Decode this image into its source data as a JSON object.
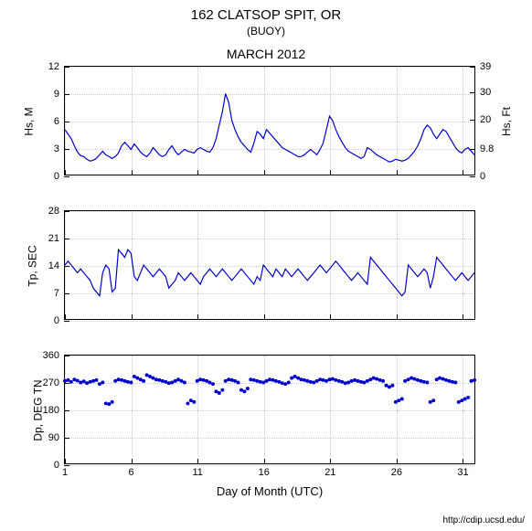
{
  "title": "162 CLATSOP SPIT, OR",
  "subtitle": "(BUOY)",
  "month": "MARCH 2012",
  "footer": "http://cdip.ucsd.edu/",
  "xaxis": {
    "title": "Day of Month (UTC)",
    "min": 1,
    "max": 32,
    "ticks": [
      1,
      6,
      11,
      16,
      21,
      26,
      31
    ]
  },
  "colors": {
    "line": "#0000cc",
    "grid": "#cccccc",
    "bg": "#ffffff",
    "text": "#000000"
  },
  "charts": [
    {
      "id": "chart1",
      "ylabel": "Hs, M",
      "ylabel_right": "Hs, Ft",
      "ymin": 0,
      "ymax": 12,
      "yticks": [
        0,
        3,
        6,
        9,
        12
      ],
      "yticks_right": [
        0,
        9.8,
        20,
        30,
        39
      ],
      "type": "line",
      "line_width": 1.2,
      "data": [
        5.0,
        4.5,
        4.0,
        3.2,
        2.5,
        2.1,
        2.0,
        1.7,
        1.5,
        1.6,
        1.8,
        2.2,
        2.6,
        2.2,
        2.0,
        1.8,
        2.0,
        2.4,
        3.2,
        3.6,
        3.2,
        2.8,
        3.4,
        3.0,
        2.5,
        2.2,
        2.0,
        2.4,
        3.0,
        2.6,
        2.2,
        2.0,
        2.2,
        2.8,
        3.2,
        2.6,
        2.2,
        2.5,
        2.8,
        2.6,
        2.5,
        2.4,
        2.8,
        3.0,
        2.8,
        2.6,
        2.5,
        3.0,
        4.0,
        5.5,
        7.0,
        9.0,
        8.0,
        6.0,
        5.0,
        4.2,
        3.6,
        3.2,
        2.8,
        2.5,
        3.5,
        4.8,
        4.5,
        4.0,
        5.0,
        4.6,
        4.2,
        3.8,
        3.4,
        3.0,
        2.8,
        2.6,
        2.4,
        2.2,
        2.0,
        2.0,
        2.2,
        2.5,
        2.8,
        2.5,
        2.2,
        2.8,
        3.5,
        5.0,
        6.5,
        6.0,
        5.0,
        4.2,
        3.6,
        3.0,
        2.6,
        2.4,
        2.2,
        2.0,
        1.8,
        2.0,
        3.0,
        2.8,
        2.5,
        2.2,
        2.0,
        1.8,
        1.6,
        1.4,
        1.5,
        1.7,
        1.6,
        1.5,
        1.6,
        1.8,
        2.2,
        2.6,
        3.2,
        4.0,
        5.0,
        5.5,
        5.2,
        4.5,
        4.0,
        4.5,
        5.0,
        4.8,
        4.2,
        3.6,
        3.0,
        2.6,
        2.4,
        2.8,
        3.0,
        2.6,
        2.2
      ]
    },
    {
      "id": "chart2",
      "ylabel": "Tp, SEC",
      "ymin": 0,
      "ymax": 28,
      "yticks": [
        0,
        7,
        14,
        21,
        28
      ],
      "type": "line",
      "line_width": 1.2,
      "data": [
        14,
        15,
        14,
        13,
        12,
        13,
        12,
        11,
        10,
        8,
        7,
        6,
        12,
        14,
        13,
        7,
        8,
        18,
        17,
        16,
        18,
        17,
        11,
        10,
        12,
        14,
        13,
        12,
        11,
        12,
        13,
        12,
        11,
        8,
        9,
        10,
        12,
        11,
        10,
        11,
        12,
        11,
        10,
        9,
        11,
        12,
        13,
        12,
        11,
        12,
        13,
        12,
        11,
        10,
        11,
        12,
        13,
        12,
        11,
        10,
        9,
        11,
        10,
        14,
        13,
        12,
        11,
        13,
        12,
        11,
        13,
        12,
        11,
        12,
        13,
        12,
        11,
        10,
        11,
        12,
        13,
        14,
        13,
        12,
        13,
        14,
        15,
        14,
        13,
        12,
        11,
        10,
        11,
        12,
        11,
        10,
        9,
        16,
        15,
        14,
        13,
        12,
        11,
        10,
        9,
        8,
        7,
        6,
        7,
        14,
        13,
        12,
        11,
        12,
        13,
        12,
        8,
        11,
        16,
        15,
        14,
        13,
        12,
        11,
        10,
        11,
        12,
        11,
        10,
        11,
        12
      ]
    },
    {
      "id": "chart3",
      "ylabel": "Dp, DEG TN",
      "ymin": 0,
      "ymax": 360,
      "yticks": [
        0,
        90,
        180,
        270,
        360
      ],
      "type": "scatter",
      "marker_size": 2,
      "data": [
        275,
        278,
        272,
        280,
        276,
        270,
        274,
        268,
        272,
        275,
        278,
        265,
        270,
        200,
        198,
        205,
        275,
        280,
        278,
        275,
        272,
        270,
        290,
        285,
        280,
        275,
        295,
        290,
        285,
        280,
        278,
        275,
        272,
        268,
        270,
        275,
        280,
        275,
        270,
        200,
        210,
        205,
        275,
        280,
        278,
        275,
        270,
        265,
        240,
        235,
        245,
        275,
        280,
        278,
        275,
        270,
        245,
        240,
        250,
        280,
        278,
        275,
        272,
        270,
        275,
        280,
        278,
        275,
        272,
        268,
        265,
        270,
        285,
        290,
        285,
        280,
        278,
        275,
        272,
        270,
        275,
        280,
        278,
        275,
        280,
        282,
        278,
        275,
        272,
        268,
        270,
        275,
        278,
        275,
        272,
        270,
        275,
        280,
        285,
        282,
        278,
        275,
        260,
        255,
        260,
        205,
        210,
        215,
        275,
        280,
        285,
        282,
        278,
        275,
        272,
        270,
        205,
        210,
        280,
        285,
        282,
        278,
        275,
        272,
        270,
        205,
        210,
        215,
        220,
        275,
        278
      ]
    }
  ]
}
